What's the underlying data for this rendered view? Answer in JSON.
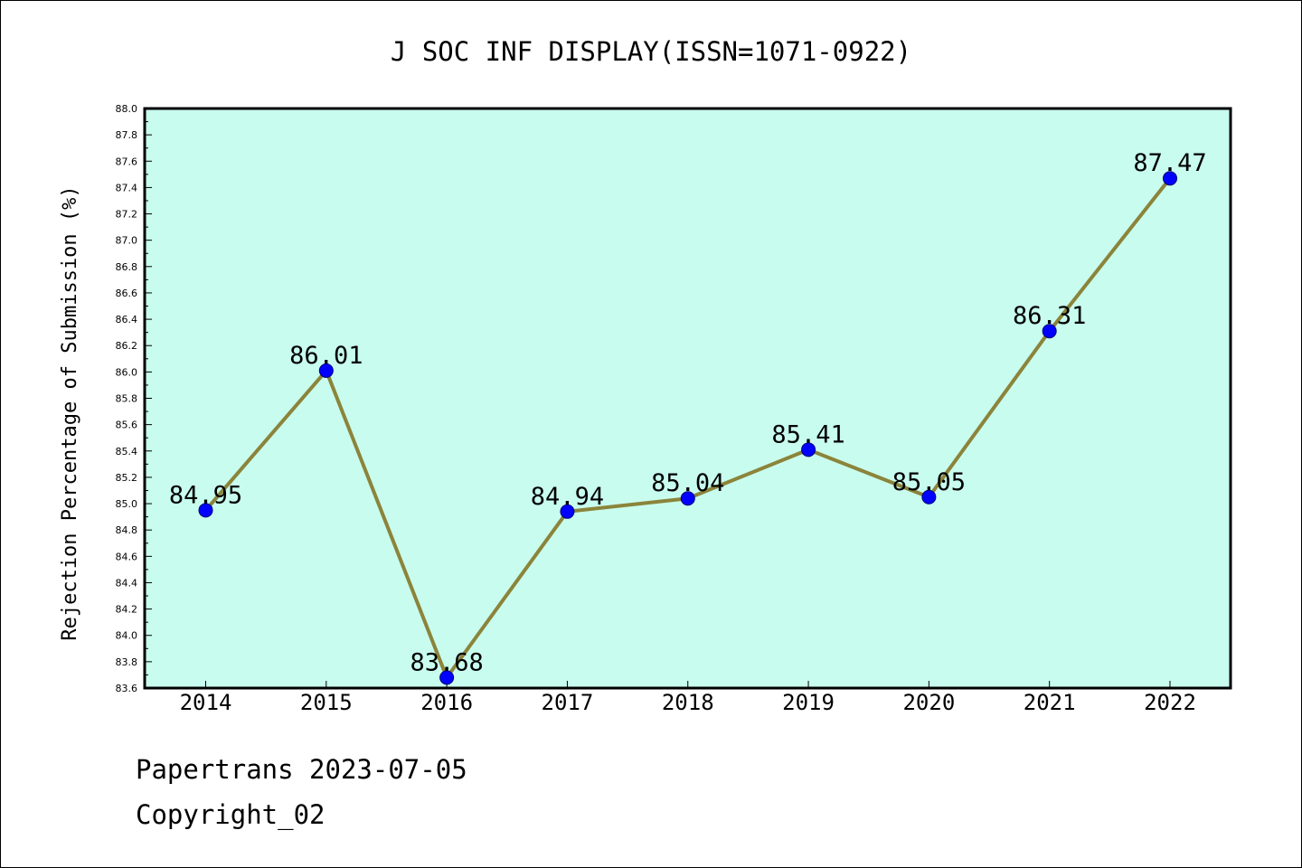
{
  "chart_data": {
    "type": "line",
    "title": "J SOC INF DISPLAY(ISSN=1071-0922)",
    "xlabel": "",
    "ylabel": "Rejection Percentage of Submission (%)",
    "categories": [
      "2014",
      "2015",
      "2016",
      "2017",
      "2018",
      "2019",
      "2020",
      "2021",
      "2022"
    ],
    "series": [
      {
        "values": [
          84.95,
          86.01,
          83.68,
          84.94,
          85.04,
          85.41,
          85.05,
          86.31,
          87.47
        ],
        "labels": [
          "84.95",
          "86.01",
          "83.68",
          "84.94",
          "85.04",
          "85.41",
          "85.05",
          "86.31",
          "87.47"
        ]
      }
    ],
    "ylim": [
      83.6,
      88.0
    ],
    "yticks": [
      "83.6",
      "83.8",
      "84.0",
      "84.2",
      "84.4",
      "84.6",
      "84.8",
      "85.0",
      "85.2",
      "85.4",
      "85.6",
      "85.8",
      "86.0",
      "86.2",
      "86.4",
      "86.6",
      "86.8",
      "87.0",
      "87.2",
      "87.4",
      "87.6",
      "87.8",
      "88.0"
    ],
    "grid": false,
    "legend": "none",
    "colors": {
      "plot_background": "#c8fcee",
      "line": "#8b843a",
      "marker": "#0000ff",
      "axis": "#000000"
    }
  },
  "footer": {
    "line1": "Papertrans 2023-07-05",
    "line2": "Copyright_02"
  }
}
